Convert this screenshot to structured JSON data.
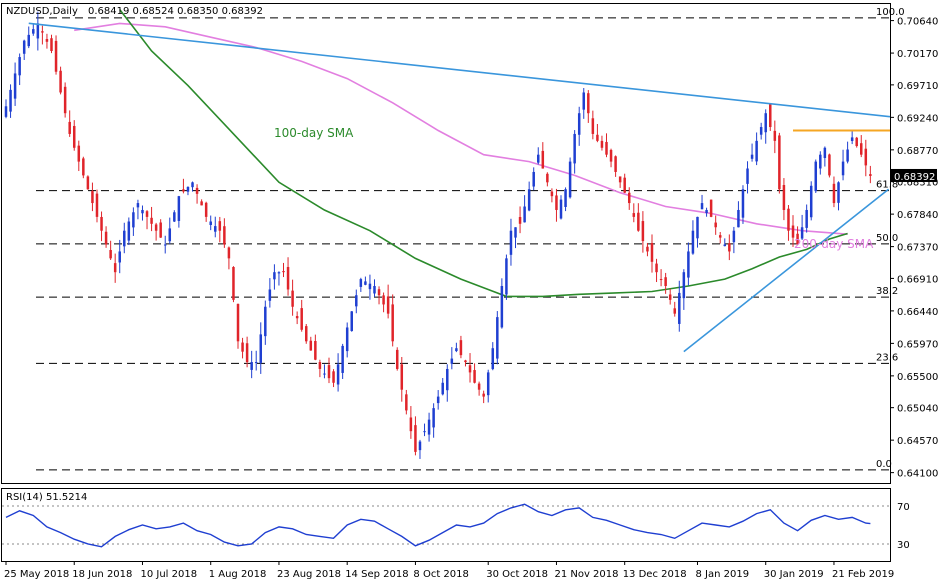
{
  "header": {
    "symbol_label": "NZDUSD,Daily",
    "ohlc_text": "0.68419 0.68524 0.68350 0.68392"
  },
  "rsi_header": {
    "label": "RSI(14) 51.5214"
  },
  "annotations": {
    "sma100_label": "100-day SMA",
    "sma200_label": "200-day SMA"
  },
  "colors": {
    "bull_candle": "#1f3fd1",
    "bear_candle": "#e0242a",
    "sma100": "#2b8a2b",
    "sma200": "#e27fe0",
    "trend_resistance": "#3a96dc",
    "trend_support": "#3a96dc",
    "horizontal_resistance": "#f5a623",
    "rsi_line": "#1f3fd1",
    "price_tag_bg": "#000000"
  },
  "chart_data": {
    "type": "candlestick",
    "last_price": 0.68392,
    "last_price_label": "0.68392",
    "price_axis": {
      "range": [
        0.6395,
        0.7088
      ],
      "ticks": [
        0.7064,
        0.7017,
        0.6971,
        0.6924,
        0.6877,
        0.6831,
        0.6784,
        0.6737,
        0.6691,
        0.6644,
        0.6597,
        0.655,
        0.6504,
        0.6457,
        0.641
      ],
      "tick_labels": [
        "0.70640",
        "0.70170",
        "0.69710",
        "0.69240",
        "0.68770",
        "0.68310",
        "0.67840",
        "0.67370",
        "0.66910",
        "0.66440",
        "0.65970",
        "0.65500",
        "0.65040",
        "0.64570",
        "0.64100"
      ]
    },
    "x_axis": {
      "range": [
        0,
        193
      ],
      "ticks": [
        {
          "x": 0,
          "label": "25 May 2018"
        },
        {
          "x": 15,
          "label": "18 Jun 2018"
        },
        {
          "x": 30,
          "label": "10 Jul 2018"
        },
        {
          "x": 45,
          "label": "1 Aug 2018"
        },
        {
          "x": 60,
          "label": "23 Aug 2018"
        },
        {
          "x": 75,
          "label": "14 Sep 2018"
        },
        {
          "x": 90,
          "label": "8 Oct 2018"
        },
        {
          "x": 106,
          "label": "30 Oct 2018"
        },
        {
          "x": 121,
          "label": "21 Nov 2018"
        },
        {
          "x": 136,
          "label": "13 Dec 2018"
        },
        {
          "x": 152,
          "label": "8 Jan 2019"
        },
        {
          "x": 167,
          "label": "30 Jan 2019"
        },
        {
          "x": 182,
          "label": "21 Feb 2019"
        }
      ]
    },
    "price_path": [
      [
        0,
        0.694
      ],
      [
        4,
        0.7035
      ],
      [
        7,
        0.706
      ],
      [
        10,
        0.702
      ],
      [
        14,
        0.69
      ],
      [
        18,
        0.682
      ],
      [
        21,
        0.676
      ],
      [
        24,
        0.67
      ],
      [
        26,
        0.676
      ],
      [
        29,
        0.68
      ],
      [
        32,
        0.677
      ],
      [
        35,
        0.674
      ],
      [
        38,
        0.681
      ],
      [
        41,
        0.683
      ],
      [
        44,
        0.678
      ],
      [
        47,
        0.676
      ],
      [
        49,
        0.672
      ],
      [
        51,
        0.66
      ],
      [
        53,
        0.657
      ],
      [
        55,
        0.657
      ],
      [
        57,
        0.665
      ],
      [
        59,
        0.67
      ],
      [
        61,
        0.67
      ],
      [
        63,
        0.665
      ],
      [
        66,
        0.66
      ],
      [
        69,
        0.656
      ],
      [
        72,
        0.654
      ],
      [
        75,
        0.662
      ],
      [
        78,
        0.669
      ],
      [
        81,
        0.668
      ],
      [
        84,
        0.664
      ],
      [
        86,
        0.656
      ],
      [
        88,
        0.65
      ],
      [
        90,
        0.644
      ],
      [
        92,
        0.647
      ],
      [
        95,
        0.652
      ],
      [
        97,
        0.656
      ],
      [
        99,
        0.659
      ],
      [
        101,
        0.657
      ],
      [
        103,
        0.654
      ],
      [
        105,
        0.652
      ],
      [
        107,
        0.659
      ],
      [
        109,
        0.668
      ],
      [
        111,
        0.676
      ],
      [
        113,
        0.677
      ],
      [
        115,
        0.682
      ],
      [
        117,
        0.687
      ],
      [
        119,
        0.683
      ],
      [
        121,
        0.679
      ],
      [
        123,
        0.682
      ],
      [
        125,
        0.69
      ],
      [
        127,
        0.696
      ],
      [
        129,
        0.69
      ],
      [
        131,
        0.688
      ],
      [
        133,
        0.686
      ],
      [
        135,
        0.683
      ],
      [
        137,
        0.68
      ],
      [
        139,
        0.676
      ],
      [
        141,
        0.673
      ],
      [
        143,
        0.67
      ],
      [
        145,
        0.668
      ],
      [
        147,
        0.664
      ],
      [
        149,
        0.67
      ],
      [
        151,
        0.676
      ],
      [
        153,
        0.68
      ],
      [
        155,
        0.678
      ],
      [
        157,
        0.675
      ],
      [
        159,
        0.673
      ],
      [
        161,
        0.679
      ],
      [
        163,
        0.685
      ],
      [
        165,
        0.689
      ],
      [
        167,
        0.693
      ],
      [
        169,
        0.689
      ],
      [
        170,
        0.682
      ],
      [
        172,
        0.676
      ],
      [
        174,
        0.674
      ],
      [
        176,
        0.679
      ],
      [
        178,
        0.686
      ],
      [
        180,
        0.688
      ],
      [
        182,
        0.68
      ],
      [
        184,
        0.686
      ],
      [
        186,
        0.6895
      ],
      [
        188,
        0.687
      ],
      [
        190,
        0.6839
      ]
    ],
    "sma100": [
      [
        25,
        0.708
      ],
      [
        32,
        0.702
      ],
      [
        40,
        0.697
      ],
      [
        50,
        0.69
      ],
      [
        60,
        0.683
      ],
      [
        70,
        0.679
      ],
      [
        80,
        0.676
      ],
      [
        90,
        0.672
      ],
      [
        100,
        0.669
      ],
      [
        106,
        0.6675
      ],
      [
        110,
        0.6665
      ],
      [
        118,
        0.6665
      ],
      [
        126,
        0.6668
      ],
      [
        134,
        0.667
      ],
      [
        142,
        0.6672
      ],
      [
        150,
        0.668
      ],
      [
        158,
        0.669
      ],
      [
        164,
        0.6705
      ],
      [
        170,
        0.6722
      ],
      [
        176,
        0.6733
      ],
      [
        181,
        0.6748
      ],
      [
        185,
        0.6756
      ]
    ],
    "sma200": [
      [
        15,
        0.705
      ],
      [
        25,
        0.706
      ],
      [
        35,
        0.7055
      ],
      [
        45,
        0.704
      ],
      [
        55,
        0.7025
      ],
      [
        65,
        0.7005
      ],
      [
        75,
        0.698
      ],
      [
        85,
        0.6945
      ],
      [
        95,
        0.6905
      ],
      [
        105,
        0.687
      ],
      [
        115,
        0.686
      ],
      [
        125,
        0.684
      ],
      [
        135,
        0.6815
      ],
      [
        145,
        0.6795
      ],
      [
        155,
        0.6785
      ],
      [
        165,
        0.677
      ],
      [
        175,
        0.676
      ],
      [
        185,
        0.6755
      ]
    ],
    "trendlines": [
      {
        "name": "resistance",
        "from": [
          5,
          0.706
        ],
        "to": [
          199,
          0.6925
        ]
      },
      {
        "name": "support",
        "from": [
          149,
          0.6585
        ],
        "to": [
          194,
          0.682
        ]
      },
      {
        "name": "horizontal-resistance",
        "from": [
          173,
          0.6905
        ],
        "to": [
          198,
          0.6905
        ]
      }
    ],
    "fibonacci": [
      {
        "label": "100.0",
        "price": 0.7068
      },
      {
        "label": "61.8",
        "price": 0.6818
      },
      {
        "label": "50.0",
        "price": 0.6741
      },
      {
        "label": "38.2",
        "price": 0.6664
      },
      {
        "label": "23.6",
        "price": 0.6568
      },
      {
        "label": "0.0",
        "price": 0.6414
      }
    ],
    "rsi": {
      "range": [
        12,
        88
      ],
      "levels": [
        70,
        30
      ],
      "tick_labels": [
        "70",
        "30"
      ],
      "path": [
        [
          0,
          58
        ],
        [
          3,
          65
        ],
        [
          6,
          60
        ],
        [
          9,
          48
        ],
        [
          12,
          42
        ],
        [
          15,
          35
        ],
        [
          18,
          30
        ],
        [
          21,
          27
        ],
        [
          24,
          38
        ],
        [
          27,
          45
        ],
        [
          30,
          50
        ],
        [
          33,
          46
        ],
        [
          36,
          48
        ],
        [
          39,
          52
        ],
        [
          42,
          44
        ],
        [
          45,
          40
        ],
        [
          48,
          32
        ],
        [
          51,
          28
        ],
        [
          54,
          30
        ],
        [
          57,
          42
        ],
        [
          60,
          48
        ],
        [
          63,
          46
        ],
        [
          66,
          40
        ],
        [
          69,
          38
        ],
        [
          72,
          36
        ],
        [
          75,
          50
        ],
        [
          78,
          56
        ],
        [
          81,
          54
        ],
        [
          84,
          46
        ],
        [
          87,
          38
        ],
        [
          90,
          28
        ],
        [
          93,
          34
        ],
        [
          96,
          42
        ],
        [
          99,
          50
        ],
        [
          102,
          48
        ],
        [
          105,
          52
        ],
        [
          108,
          62
        ],
        [
          111,
          68
        ],
        [
          114,
          72
        ],
        [
          117,
          64
        ],
        [
          120,
          60
        ],
        [
          123,
          66
        ],
        [
          126,
          68
        ],
        [
          129,
          58
        ],
        [
          132,
          55
        ],
        [
          135,
          50
        ],
        [
          138,
          45
        ],
        [
          141,
          42
        ],
        [
          144,
          40
        ],
        [
          147,
          36
        ],
        [
          150,
          44
        ],
        [
          153,
          52
        ],
        [
          156,
          50
        ],
        [
          159,
          48
        ],
        [
          162,
          54
        ],
        [
          165,
          62
        ],
        [
          168,
          66
        ],
        [
          171,
          52
        ],
        [
          174,
          44
        ],
        [
          177,
          55
        ],
        [
          180,
          60
        ],
        [
          183,
          56
        ],
        [
          186,
          58
        ],
        [
          189,
          52
        ],
        [
          190,
          51.5
        ]
      ]
    }
  }
}
